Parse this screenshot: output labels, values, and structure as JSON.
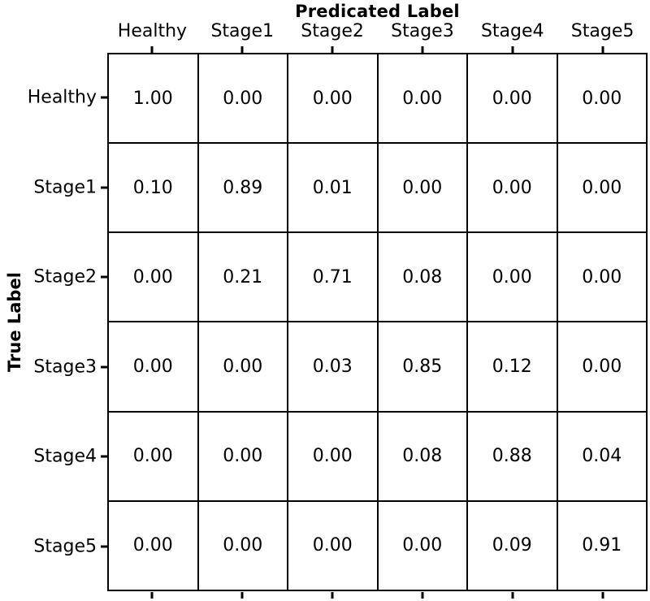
{
  "chart_data": {
    "type": "heatmap",
    "subtype": "confusion-matrix",
    "title": "Predicated Label",
    "ylabel": "True Label",
    "categories": [
      "Healthy",
      "Stage1",
      "Stage2",
      "Stage3",
      "Stage4",
      "Stage5"
    ],
    "rows": [
      "Healthy",
      "Stage1",
      "Stage2",
      "Stage3",
      "Stage4",
      "Stage5"
    ],
    "values": [
      [
        1.0,
        0.0,
        0.0,
        0.0,
        0.0,
        0.0
      ],
      [
        0.1,
        0.89,
        0.01,
        0.0,
        0.0,
        0.0
      ],
      [
        0.0,
        0.21,
        0.71,
        0.08,
        0.0,
        0.0
      ],
      [
        0.0,
        0.0,
        0.03,
        0.85,
        0.12,
        0.0
      ],
      [
        0.0,
        0.0,
        0.0,
        0.08,
        0.88,
        0.04
      ],
      [
        0.0,
        0.0,
        0.0,
        0.0,
        0.09,
        0.91
      ]
    ],
    "value_decimals": 2,
    "colors": {
      "cell_background": "#ffffff",
      "grid_line": "#000000",
      "text": "#000000"
    },
    "layout": {
      "legend": "none",
      "grid": "cell-borders",
      "ticks": "top, bottom, left edges"
    }
  }
}
